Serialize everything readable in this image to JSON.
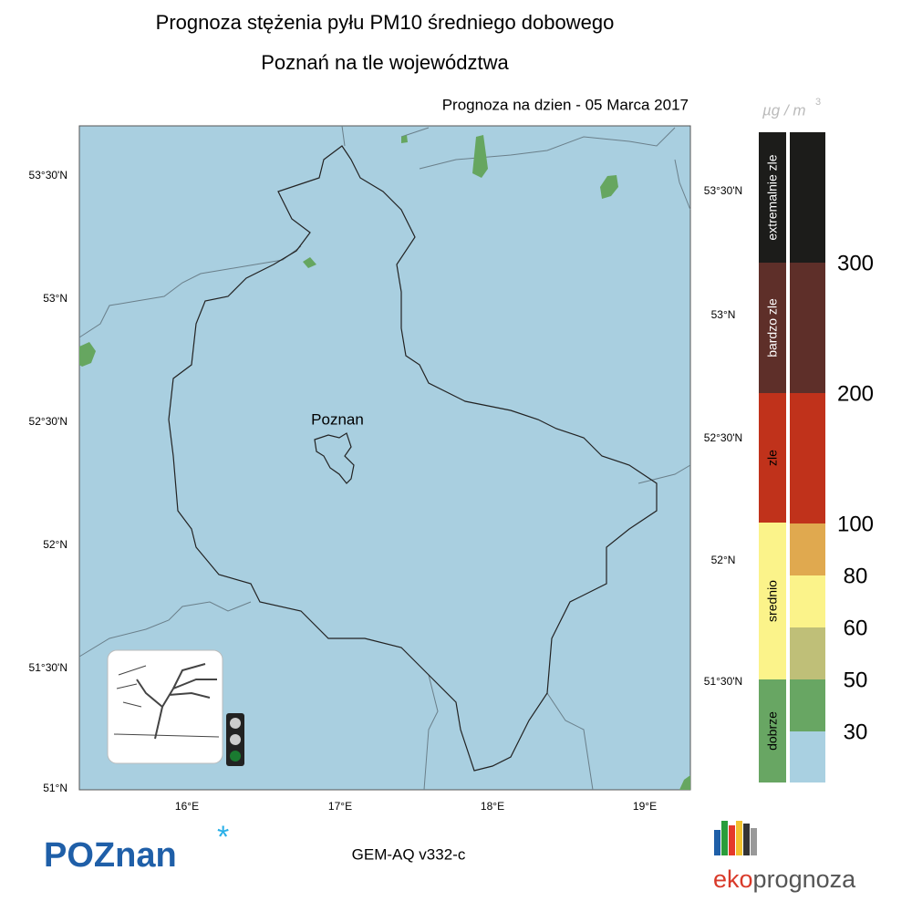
{
  "header": {
    "title": "Prognoza stężenia pyłu PM10 średniego dobowego",
    "subtitle": "Poznań na tle województwa",
    "forecast_date": "Prognoza na dzien -  05 Marca 2017"
  },
  "map": {
    "city_label": "Poznan",
    "lat_labels_left": [
      "53°30'N",
      "53°N",
      "52°30'N",
      "52°N",
      "51°30'N",
      "51°N"
    ],
    "lat_labels_right": [
      "53°30'N",
      "53°N",
      "52°30'N",
      "52°N",
      "51°30'N"
    ],
    "lon_labels": [
      "16°E",
      "17°E",
      "18°E",
      "19°E"
    ]
  },
  "legend": {
    "unit": {
      "base": "µg / m",
      "exponent": "3"
    },
    "categories": [
      {
        "label": "extremalnie zle",
        "color": "#1c1c1a",
        "text_color": "#ffffff"
      },
      {
        "label": "bardzo zle",
        "color": "#5e2f29",
        "text_color": "#ffffff"
      },
      {
        "label": "zle",
        "color": "#c0321b",
        "text_color": "#000000"
      },
      {
        "label": "srednio",
        "color": "#fbf38a",
        "text_color": "#000000"
      },
      {
        "label": "dobrze",
        "color": "#68a663",
        "text_color": "#000000"
      }
    ],
    "level_colors": [
      "#1c1c1a",
      "#5e2f29",
      "#c0321b",
      "#e0a94f",
      "#fbf38a",
      "#bfbf78",
      "#68a663",
      "#a9d0e1"
    ],
    "thresholds": [
      300,
      200,
      100,
      80,
      60,
      50,
      30
    ]
  },
  "footer": {
    "model": "GEM-AQ v332-c",
    "logo_left": "POZnan",
    "logo_right_a": "eko",
    "logo_right_b": "prognoza"
  }
}
